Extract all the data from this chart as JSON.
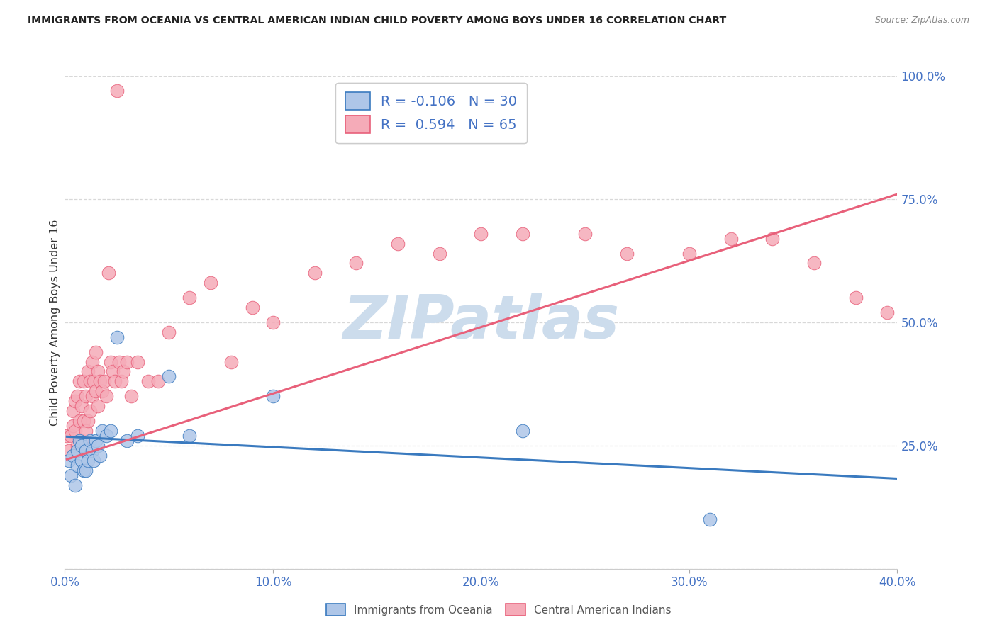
{
  "title": "IMMIGRANTS FROM OCEANIA VS CENTRAL AMERICAN INDIAN CHILD POVERTY AMONG BOYS UNDER 16 CORRELATION CHART",
  "source": "Source: ZipAtlas.com",
  "ylabel": "Child Poverty Among Boys Under 16",
  "xlim": [
    0.0,
    0.4
  ],
  "ylim": [
    0.0,
    1.0
  ],
  "ytick_labels": [
    "",
    "25.0%",
    "50.0%",
    "75.0%",
    "100.0%"
  ],
  "ytick_values": [
    0.0,
    0.25,
    0.5,
    0.75,
    1.0
  ],
  "xtick_labels": [
    "0.0%",
    "10.0%",
    "20.0%",
    "30.0%",
    "40.0%"
  ],
  "xtick_values": [
    0.0,
    0.1,
    0.2,
    0.3,
    0.4
  ],
  "background_color": "#ffffff",
  "grid_color": "#d8d8d8",
  "watermark": "ZIPatlas",
  "watermark_color": "#ccdcec",
  "blue_R": -0.106,
  "blue_N": 30,
  "pink_R": 0.594,
  "pink_N": 65,
  "blue_color": "#aec6e8",
  "pink_color": "#f5abb8",
  "blue_line_color": "#3a7abf",
  "pink_line_color": "#e8607a",
  "blue_text_color": "#4472c4",
  "pink_text_color": "#e8607a",
  "blue_scatter_x": [
    0.002,
    0.003,
    0.004,
    0.005,
    0.006,
    0.006,
    0.007,
    0.008,
    0.008,
    0.009,
    0.01,
    0.01,
    0.011,
    0.012,
    0.013,
    0.014,
    0.015,
    0.016,
    0.017,
    0.018,
    0.02,
    0.022,
    0.025,
    0.03,
    0.035,
    0.05,
    0.06,
    0.1,
    0.22,
    0.31
  ],
  "blue_scatter_y": [
    0.22,
    0.19,
    0.23,
    0.17,
    0.24,
    0.21,
    0.26,
    0.22,
    0.25,
    0.2,
    0.24,
    0.2,
    0.22,
    0.26,
    0.24,
    0.22,
    0.26,
    0.25,
    0.23,
    0.28,
    0.27,
    0.28,
    0.47,
    0.26,
    0.27,
    0.39,
    0.27,
    0.35,
    0.28,
    0.1
  ],
  "pink_scatter_x": [
    0.001,
    0.002,
    0.003,
    0.004,
    0.004,
    0.005,
    0.005,
    0.006,
    0.006,
    0.007,
    0.007,
    0.008,
    0.008,
    0.009,
    0.009,
    0.01,
    0.01,
    0.011,
    0.011,
    0.012,
    0.012,
    0.013,
    0.013,
    0.014,
    0.015,
    0.015,
    0.016,
    0.016,
    0.017,
    0.018,
    0.019,
    0.02,
    0.021,
    0.022,
    0.023,
    0.024,
    0.025,
    0.026,
    0.027,
    0.028,
    0.03,
    0.032,
    0.035,
    0.04,
    0.045,
    0.05,
    0.06,
    0.07,
    0.08,
    0.09,
    0.1,
    0.12,
    0.14,
    0.16,
    0.18,
    0.2,
    0.22,
    0.25,
    0.27,
    0.3,
    0.32,
    0.34,
    0.36,
    0.38,
    0.395
  ],
  "pink_scatter_y": [
    0.27,
    0.24,
    0.27,
    0.29,
    0.32,
    0.28,
    0.34,
    0.25,
    0.35,
    0.3,
    0.38,
    0.26,
    0.33,
    0.3,
    0.38,
    0.28,
    0.35,
    0.3,
    0.4,
    0.32,
    0.38,
    0.35,
    0.42,
    0.38,
    0.36,
    0.44,
    0.33,
    0.4,
    0.38,
    0.36,
    0.38,
    0.35,
    0.6,
    0.42,
    0.4,
    0.38,
    0.97,
    0.42,
    0.38,
    0.4,
    0.42,
    0.35,
    0.42,
    0.38,
    0.38,
    0.48,
    0.55,
    0.58,
    0.42,
    0.53,
    0.5,
    0.6,
    0.62,
    0.66,
    0.64,
    0.68,
    0.68,
    0.68,
    0.64,
    0.64,
    0.67,
    0.67,
    0.62,
    0.55,
    0.52
  ],
  "blue_trend_x0": 0.001,
  "blue_trend_x1": 0.4,
  "blue_trend_y0": 0.268,
  "blue_trend_y1": 0.183,
  "pink_trend_x0": 0.001,
  "pink_trend_x1": 0.4,
  "pink_trend_y0": 0.222,
  "pink_trend_y1": 0.76
}
